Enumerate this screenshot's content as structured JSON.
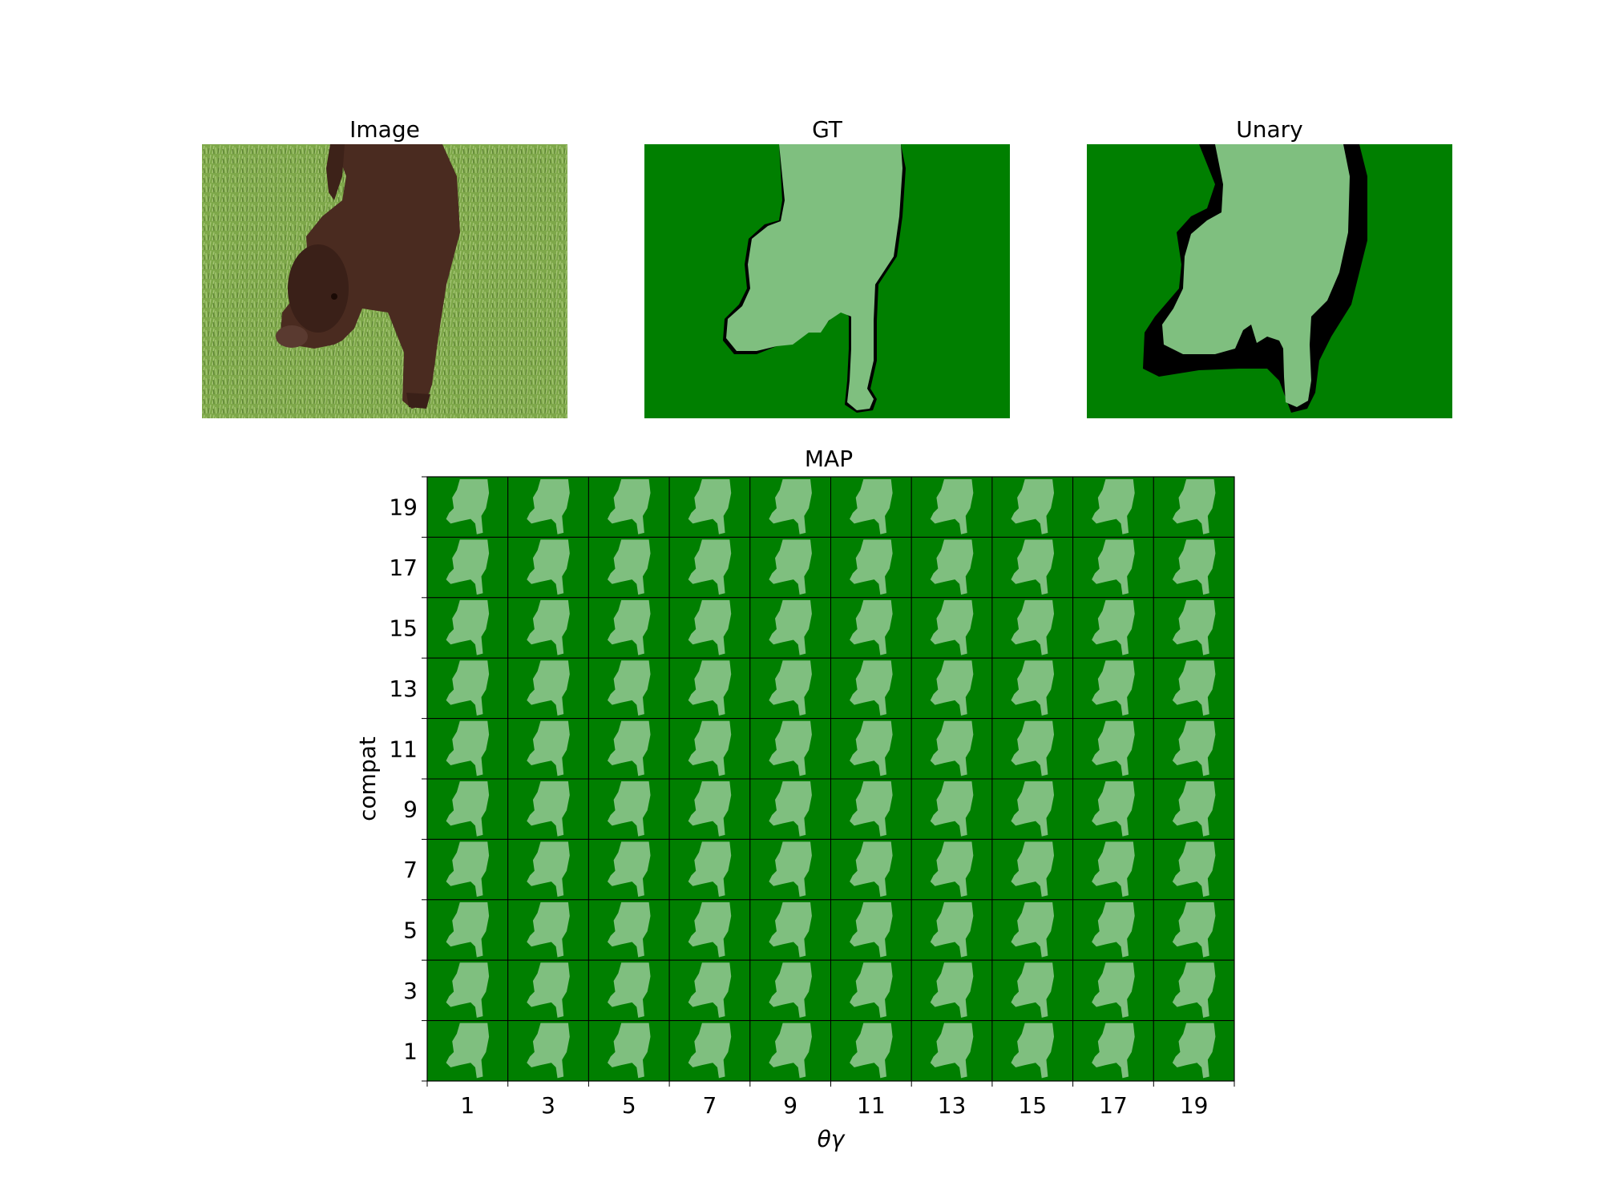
{
  "top_panels": {
    "image": {
      "title": "Image"
    },
    "gt": {
      "title": "GT"
    },
    "unary": {
      "title": "Unary"
    }
  },
  "map_panel": {
    "title": "MAP"
  },
  "colors": {
    "background_class": "#007f00",
    "object_class": "#7fbf7f",
    "void": "#000000",
    "grass": "#7ea84a",
    "dog": "#4a2b20"
  },
  "chart_data": {
    "type": "image-grid",
    "title": "MAP",
    "xlabel": "θγ",
    "ylabel": "compat",
    "x_ticks": [
      "1",
      "3",
      "5",
      "7",
      "9",
      "11",
      "13",
      "15",
      "17",
      "19"
    ],
    "y_ticks": [
      "19",
      "17",
      "15",
      "13",
      "11",
      "9",
      "7",
      "5",
      "3",
      "1"
    ],
    "rows": 10,
    "cols": 10
  }
}
